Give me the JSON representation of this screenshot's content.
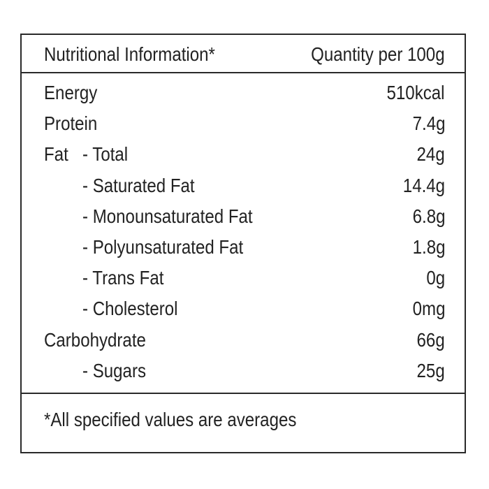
{
  "header": {
    "left": "Nutritional Information*",
    "right": "Quantity per 100g"
  },
  "rows": [
    {
      "label": "Energy",
      "value": "510kcal"
    },
    {
      "label": "Protein",
      "value": "7.4g"
    },
    {
      "label": "Fat",
      "sublabel": "- Total",
      "value": "24g"
    },
    {
      "label": "- Saturated Fat",
      "value": "14.4g"
    },
    {
      "label": "- Monounsaturated Fat",
      "value": "6.8g"
    },
    {
      "label": "- Polyunsaturated Fat",
      "value": "1.8g"
    },
    {
      "label": "- Trans Fat",
      "value": "0g"
    },
    {
      "label": "- Cholesterol",
      "value": "0mg"
    },
    {
      "label": "Carbohydrate",
      "value": "66g"
    },
    {
      "label": "- Sugars",
      "value": "25g"
    }
  ],
  "footer": {
    "note": "*All specified values are averages"
  }
}
